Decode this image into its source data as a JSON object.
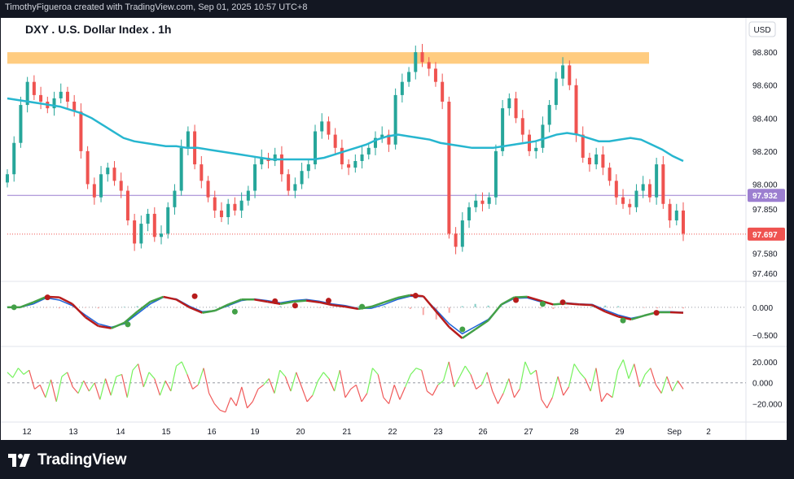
{
  "header": {
    "attribution": "TimothyFigueroa created with TradingView.com, Sep 01, 2025 10:57 UTC+8"
  },
  "footer": {
    "brand": "TradingView"
  },
  "colors": {
    "up": "#26a69a",
    "down": "#ef5350",
    "ma": "#27b6cf",
    "resistance": "#ffcc80",
    "level_line": "#9c7fd0",
    "current_line": "#ef5350",
    "ind_fast": "#1e63d8",
    "ind_slow_up": "#43a047",
    "ind_slow_down": "#b71c1c",
    "osc_up": "#76f25e",
    "osc_down": "#f05a5a"
  },
  "chart_data": [
    {
      "type": "candlestick",
      "title": "DXY . U.S. Dollar Index . 1h",
      "currency": "USD",
      "y_ticks": [
        "98.800",
        "98.600",
        "98.400",
        "98.200",
        "98.000",
        "97.850",
        "97.580",
        "97.460"
      ],
      "ylim": [
        97.44,
        98.86
      ],
      "x_labels": [
        "12",
        "13",
        "14",
        "15",
        "16",
        "19",
        "20",
        "21",
        "22",
        "23",
        "26",
        "27",
        "28",
        "29",
        "Sep",
        "2"
      ],
      "price_labels": [
        {
          "text": "97.932",
          "value": 97.932,
          "color": "#9c7fd0"
        },
        {
          "text": "97.697",
          "value": 97.697,
          "color": "#ef5350"
        }
      ],
      "resistance_zone": [
        98.73,
        98.8
      ],
      "closes": [
        98.06,
        98.25,
        98.48,
        98.62,
        98.54,
        98.5,
        98.46,
        98.52,
        98.56,
        98.5,
        98.44,
        98.2,
        98.0,
        97.92,
        98.06,
        98.1,
        98.02,
        97.96,
        97.78,
        97.64,
        97.76,
        97.82,
        97.68,
        97.7,
        97.86,
        97.96,
        98.22,
        98.32,
        98.12,
        98.02,
        97.92,
        97.84,
        97.8,
        97.88,
        97.84,
        97.9,
        97.96,
        98.12,
        98.16,
        98.14,
        98.18,
        98.06,
        97.96,
        98.0,
        98.08,
        98.12,
        98.32,
        98.38,
        98.3,
        98.22,
        98.12,
        98.1,
        98.14,
        98.18,
        98.22,
        98.28,
        98.3,
        98.24,
        98.54,
        98.62,
        98.68,
        98.8,
        98.74,
        98.7,
        98.62,
        98.5,
        97.7,
        97.62,
        97.78,
        97.86,
        97.9,
        97.88,
        97.92,
        98.2,
        98.46,
        98.52,
        98.4,
        98.3,
        98.2,
        98.22,
        98.36,
        98.48,
        98.64,
        98.72,
        98.6,
        98.3,
        98.16,
        98.12,
        98.18,
        98.1,
        98.02,
        97.92,
        97.88,
        97.86,
        97.96,
        98.0,
        97.92,
        98.12,
        97.88,
        97.78,
        97.84,
        97.7
      ],
      "ma": [
        98.52,
        98.51,
        98.5,
        98.49,
        98.48,
        98.47,
        98.45,
        98.43,
        98.4,
        98.36,
        98.32,
        98.28,
        98.26,
        98.25,
        98.24,
        98.23,
        98.23,
        98.22,
        98.22,
        98.21,
        98.2,
        98.19,
        98.18,
        98.17,
        98.16,
        98.15,
        98.15,
        98.15,
        98.15,
        98.15,
        98.16,
        98.18,
        98.2,
        98.22,
        98.24,
        98.27,
        98.29,
        98.3,
        98.29,
        98.28,
        98.27,
        98.25,
        98.24,
        98.23,
        98.22,
        98.22,
        98.22,
        98.23,
        98.24,
        98.25,
        98.26,
        98.28,
        98.3,
        98.31,
        98.3,
        98.28,
        98.26,
        98.26,
        98.27,
        98.28,
        98.27,
        98.24,
        98.21,
        98.17,
        98.14
      ]
    },
    {
      "type": "line",
      "name": "oscillator_histogram",
      "y_ticks": [
        "0.000",
        "−0.500"
      ],
      "ylim": [
        -0.65,
        0.38
      ],
      "fast": [
        0.0,
        0.0,
        0.06,
        0.17,
        0.13,
        0.03,
        -0.14,
        -0.3,
        -0.36,
        -0.3,
        -0.12,
        0.06,
        0.18,
        0.15,
        0.02,
        -0.08,
        -0.06,
        0.03,
        0.12,
        0.15,
        0.12,
        0.08,
        0.12,
        0.14,
        0.11,
        0.06,
        0.03,
        -0.02,
        -0.02,
        0.05,
        0.14,
        0.2,
        0.19,
        -0.05,
        -0.3,
        -0.48,
        -0.35,
        -0.22,
        0.04,
        0.16,
        0.17,
        0.1,
        0.05,
        0.08,
        0.06,
        0.05,
        -0.05,
        -0.14,
        -0.2,
        -0.15,
        -0.08,
        -0.08,
        -0.09
      ],
      "slow": [
        0.0,
        0.0,
        0.09,
        0.19,
        0.18,
        0.06,
        -0.18,
        -0.34,
        -0.38,
        -0.28,
        -0.08,
        0.1,
        0.19,
        0.14,
        0.0,
        -0.1,
        -0.06,
        0.05,
        0.14,
        0.14,
        0.1,
        0.06,
        0.1,
        0.12,
        0.09,
        0.04,
        0.01,
        -0.03,
        0.01,
        0.09,
        0.17,
        0.22,
        0.2,
        -0.08,
        -0.36,
        -0.56,
        -0.4,
        -0.24,
        0.05,
        0.18,
        0.19,
        0.12,
        0.05,
        0.07,
        0.05,
        0.04,
        -0.08,
        -0.17,
        -0.22,
        -0.15,
        -0.09,
        -0.09,
        -0.1
      ],
      "hist": [
        0.01,
        0.02,
        0.01,
        -0.01,
        -0.02,
        -0.01,
        -0.01,
        -0.02,
        0.0,
        0.01,
        0.02,
        0.01,
        0.0,
        -0.01,
        -0.02,
        0.0,
        0.01,
        0.02,
        0.0,
        -0.01,
        0.01,
        0.02,
        0.01,
        0.0,
        -0.01,
        -0.01,
        0.0,
        0.02,
        0.03,
        0.02,
        0.0,
        -0.03,
        -0.14,
        -0.22,
        -0.1,
        0.02,
        0.06,
        0.03,
        0.02,
        0.01,
        0.0,
        -0.02,
        -0.03,
        -0.02,
        0.0,
        0.02,
        0.03,
        0.02,
        0.0,
        -0.01,
        -0.02,
        -0.01,
        -0.02
      ],
      "markers": [
        {
          "index": 1,
          "value": 0.0,
          "color": "#43a047"
        },
        {
          "index": 6,
          "value": 0.18,
          "color": "#b71c1c"
        },
        {
          "index": 18,
          "value": -0.31,
          "color": "#43a047"
        },
        {
          "index": 28,
          "value": 0.2,
          "color": "#b71c1c"
        },
        {
          "index": 34,
          "value": -0.08,
          "color": "#43a047"
        },
        {
          "index": 40,
          "value": 0.11,
          "color": "#b71c1c"
        },
        {
          "index": 43,
          "value": 0.03,
          "color": "#b71c1c"
        },
        {
          "index": 48,
          "value": 0.12,
          "color": "#b71c1c"
        },
        {
          "index": 53,
          "value": 0.01,
          "color": "#43a047"
        },
        {
          "index": 61,
          "value": 0.21,
          "color": "#b71c1c"
        },
        {
          "index": 68,
          "value": -0.4,
          "color": "#43a047"
        },
        {
          "index": 76,
          "value": 0.13,
          "color": "#b71c1c"
        },
        {
          "index": 80,
          "value": 0.06,
          "color": "#43a047"
        },
        {
          "index": 83,
          "value": 0.09,
          "color": "#b71c1c"
        },
        {
          "index": 92,
          "value": -0.24,
          "color": "#43a047"
        },
        {
          "index": 97,
          "value": -0.1,
          "color": "#b71c1c"
        }
      ]
    },
    {
      "type": "line",
      "name": "momentum",
      "y_ticks": [
        "20.000",
        "0.000",
        "−20.000"
      ],
      "ylim": [
        -32,
        30
      ],
      "values": [
        10,
        5,
        14,
        8,
        12,
        -6,
        -2,
        -14,
        3,
        -18,
        6,
        10,
        -4,
        -10,
        2,
        -8,
        0,
        -16,
        4,
        -12,
        6,
        8,
        -14,
        12,
        18,
        -4,
        10,
        4,
        -12,
        2,
        -8,
        16,
        20,
        8,
        -6,
        -2,
        14,
        -10,
        -20,
        -26,
        -28,
        -14,
        -22,
        -4,
        -24,
        -18,
        -6,
        -2,
        4,
        -10,
        12,
        6,
        -8,
        10,
        -4,
        -18,
        -12,
        2,
        10,
        4,
        -8,
        12,
        -14,
        -6,
        -2,
        -18,
        -10,
        14,
        8,
        -14,
        -20,
        -2,
        -16,
        -4,
        8,
        14,
        12,
        -8,
        -12,
        -2,
        2,
        20,
        -4,
        6,
        16,
        8,
        -6,
        -2,
        10,
        -8,
        -20,
        -10,
        4,
        -14,
        -6,
        20,
        8,
        12,
        -16,
        -24,
        -14,
        6,
        -12,
        -4,
        18,
        10,
        4,
        -8,
        14,
        -18,
        -10,
        -14,
        12,
        22,
        4,
        18,
        -4,
        8,
        14,
        -2,
        -10,
        6,
        -8,
        2,
        -6
      ]
    }
  ]
}
